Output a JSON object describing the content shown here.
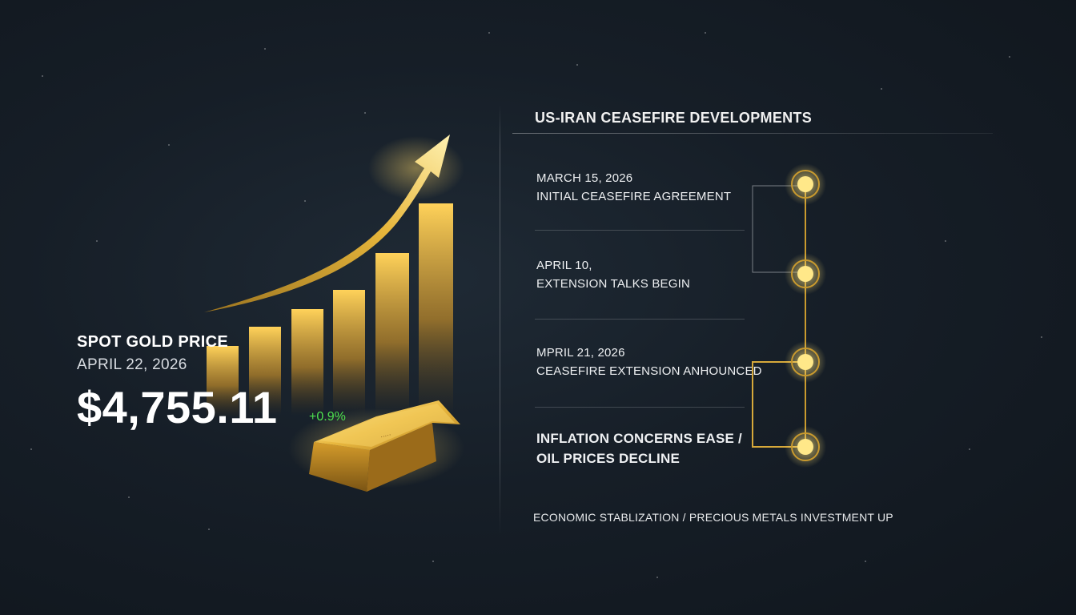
{
  "spot": {
    "title": "SPOT GOLD PRICE",
    "date": "APRIL 22, 2026",
    "price": "$4,755.11",
    "change": "+0.9%"
  },
  "timeline": {
    "title": "US-IRAN CEASEFIRE DEVELOPMENTS",
    "events": [
      {
        "line1": "MARCH 15, 2026",
        "line2": "INITIAL CEASEFIRE AGREEMENT"
      },
      {
        "line1": "APRIL 10,",
        "line2": "EXTENSION TALKS BEGIN"
      },
      {
        "line1": "MPRIL 21, 2026",
        "line2": "CEASEFIRE EXTENSION ANHOUNCED"
      },
      {
        "line1": "INFLATION CONCERNS EASE /",
        "line2": "OIL PRICES DECLINE"
      }
    ],
    "footer": "ECONOMIC STABLIZATION / PRECIOUS METALS INVESTMENT UP"
  },
  "colors": {
    "gold": "#e8b83a",
    "gold_light": "#ffe58a",
    "change_green": "#4ee04e",
    "background": "#161e27"
  },
  "icons": [
    "rising-arrow-icon",
    "gold-bar-icon",
    "timeline-node-icon"
  ]
}
